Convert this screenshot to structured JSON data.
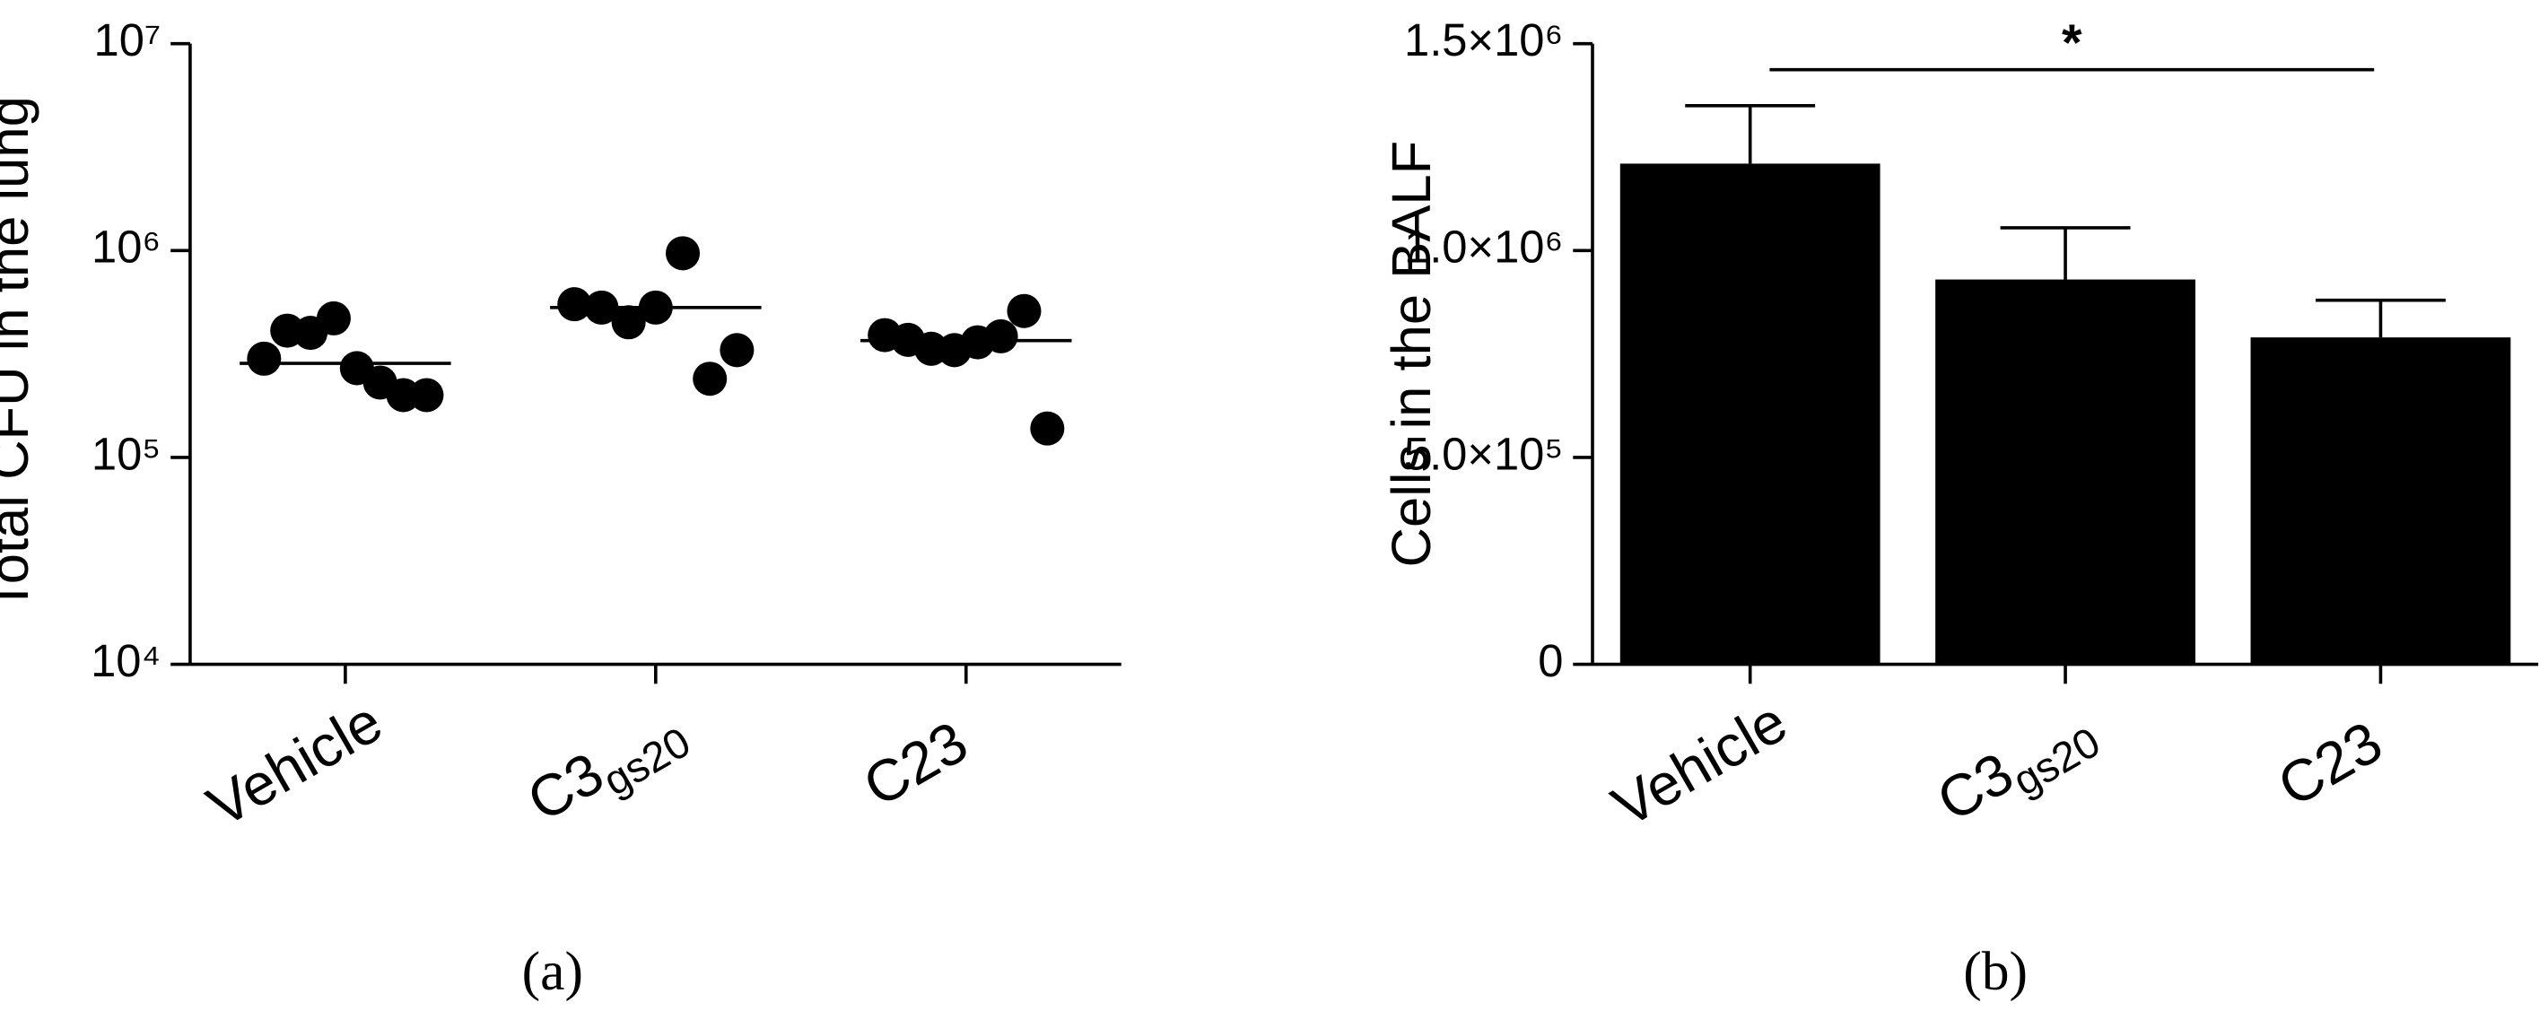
{
  "chart_data": [
    {
      "type": "scatter",
      "y_label": "Total CFU in the lung",
      "caption": "(a)",
      "categories": [
        [
          "Vehicle"
        ],
        [
          "C3",
          "gs20"
        ],
        [
          "C23"
        ]
      ],
      "points": [
        [
          300000,
          410000,
          400000,
          470000,
          270000,
          230000,
          200000,
          200000
        ],
        [
          550000,
          530000,
          450000,
          530000,
          970000,
          240000,
          330000
        ],
        [
          390000,
          370000,
          335000,
          330000,
          360000,
          385000,
          510000,
          138000
        ]
      ],
      "medians": [
        285000,
        530000,
        367000
      ],
      "color": "#000000",
      "log_y": true,
      "ylim": [
        10000,
        10000000
      ],
      "yticks": [
        {
          "value": 10000,
          "label": "10⁴"
        },
        {
          "value": 100000,
          "label": "10⁵"
        },
        {
          "value": 1000000,
          "label": "10⁶"
        },
        {
          "value": 10000000,
          "label": "10⁷"
        }
      ]
    },
    {
      "type": "bar",
      "y_label": "Cells in the BALF",
      "caption": "(b)",
      "categories": [
        [
          "Vehicle"
        ],
        [
          "C3",
          "gs20"
        ],
        [
          "C23"
        ]
      ],
      "values": [
        1210000,
        930000,
        790000
      ],
      "errors": [
        140000,
        125000,
        90000
      ],
      "color": "#000000",
      "log_y": false,
      "ylim": [
        0,
        1500000
      ],
      "yticks": [
        0,
        {
          "value": 500000,
          "label": "5.0×10⁵"
        },
        {
          "value": 1000000,
          "label": "1.0×10⁶"
        },
        {
          "value": 1500000,
          "label": "1.5×10⁶"
        }
      ],
      "annotation": {
        "text": "*",
        "from": 0,
        "to": 2
      }
    }
  ]
}
